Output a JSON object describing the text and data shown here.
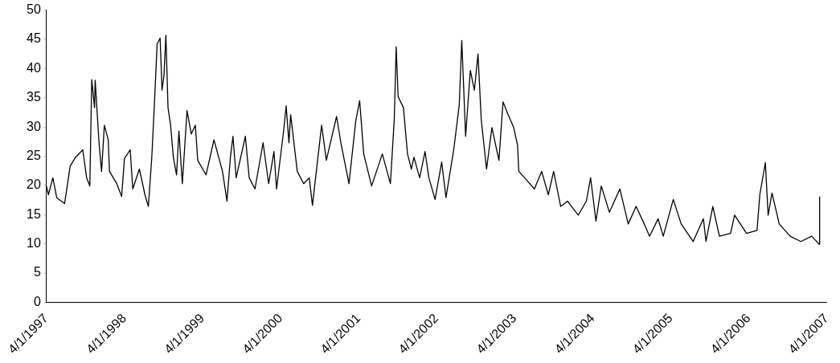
{
  "chart_data": {
    "type": "line",
    "x": [
      "1997-04-01",
      "1997-04-10",
      "1997-05-01",
      "1997-05-19",
      "1997-06-25",
      "1997-07-21",
      "1997-08-15",
      "1997-09-18",
      "1997-10-06",
      "1997-10-21",
      "1997-10-30",
      "1997-11-12",
      "1997-11-15",
      "1997-12-03",
      "1997-12-15",
      "1997-12-28",
      "1998-01-15",
      "1998-01-21",
      "1998-02-24",
      "1998-03-19",
      "1998-04-01",
      "1998-04-28",
      "1998-05-10",
      "1998-06-10",
      "1998-07-06",
      "1998-07-22",
      "1998-08-07",
      "1998-08-19",
      "1998-09-01",
      "1998-09-15",
      "1998-09-24",
      "1998-10-03",
      "1998-10-12",
      "1998-10-22",
      "1998-11-03",
      "1998-11-16",
      "1998-12-01",
      "1998-12-12",
      "1998-12-28",
      "1999-01-19",
      "1999-02-08",
      "1999-02-27",
      "1999-03-10",
      "1999-04-18",
      "1999-05-25",
      "1999-07-04",
      "1999-07-25",
      "1999-08-10",
      "1999-08-22",
      "1999-09-06",
      "1999-10-19",
      "1999-11-06",
      "1999-12-03",
      "2000-01-10",
      "2000-02-05",
      "2000-03-01",
      "2000-03-13",
      "2000-04-15",
      "2000-04-27",
      "2000-05-10",
      "2000-05-18",
      "2000-06-18",
      "2000-07-18",
      "2000-08-13",
      "2000-08-28",
      "2000-10-10",
      "2000-11-01",
      "2000-12-19",
      "2001-01-08",
      "2001-02-15",
      "2001-03-19",
      "2001-04-06",
      "2001-04-25",
      "2001-06-01",
      "2001-07-21",
      "2001-08-28",
      "2001-09-15",
      "2001-09-24",
      "2001-10-03",
      "2001-10-28",
      "2001-11-16",
      "2001-12-04",
      "2001-12-16",
      "2002-01-12",
      "2002-02-06",
      "2002-02-24",
      "2002-03-25",
      "2002-04-25",
      "2002-05-15",
      "2002-06-21",
      "2002-07-16",
      "2002-07-28",
      "2002-08-15",
      "2002-09-06",
      "2002-09-25",
      "2002-10-12",
      "2002-10-27",
      "2002-11-21",
      "2002-12-16",
      "2003-01-18",
      "2003-02-06",
      "2003-03-02",
      "2003-03-28",
      "2003-04-15",
      "2003-04-21",
      "2003-05-28",
      "2003-07-03",
      "2003-08-06",
      "2003-09-06",
      "2003-10-01",
      "2003-11-03",
      "2003-12-05",
      "2004-01-24",
      "2004-03-02",
      "2004-03-22",
      "2004-04-16",
      "2004-05-11",
      "2004-06-18",
      "2004-08-06",
      "2004-09-14",
      "2004-10-21",
      "2004-11-28",
      "2004-12-23",
      "2005-02-01",
      "2005-02-25",
      "2005-04-13",
      "2005-05-20",
      "2005-07-15",
      "2005-09-01",
      "2005-09-13",
      "2005-10-15",
      "2005-11-15",
      "2006-01-06",
      "2006-01-25",
      "2006-03-22",
      "2006-05-10",
      "2006-05-23",
      "2006-06-18",
      "2006-07-01",
      "2006-07-19",
      "2006-08-22",
      "2006-10-12",
      "2006-12-01",
      "2007-01-21",
      "2007-02-26",
      "2007-02-27"
    ],
    "series": [
      {
        "color": "#000000",
        "values": [
          19.9,
          18.4,
          21.3,
          17.9,
          16.9,
          23.3,
          24.8,
          26.1,
          21.3,
          19.9,
          38.1,
          33.3,
          38.0,
          27.3,
          22.4,
          30.3,
          27.8,
          22.4,
          20.3,
          18.1,
          24.6,
          26.1,
          19.4,
          22.8,
          18.4,
          16.4,
          24.8,
          33.7,
          44.2,
          45.2,
          36.3,
          38.8,
          45.7,
          33.3,
          30.3,
          24.8,
          21.8,
          29.3,
          20.3,
          32.8,
          28.8,
          30.3,
          24.3,
          21.8,
          27.8,
          22.4,
          17.3,
          24.8,
          28.4,
          21.3,
          28.4,
          21.3,
          19.4,
          27.3,
          20.3,
          25.8,
          19.4,
          29.3,
          33.6,
          27.3,
          32.1,
          22.4,
          20.3,
          21.3,
          16.6,
          30.3,
          24.3,
          31.8,
          27.3,
          20.3,
          31.1,
          34.5,
          25.4,
          19.9,
          25.4,
          20.3,
          31.3,
          43.7,
          35.2,
          33.3,
          25.4,
          22.8,
          24.8,
          21.3,
          25.8,
          21.3,
          17.6,
          24.0,
          17.9,
          26.3,
          33.7,
          44.8,
          28.4,
          39.7,
          36.3,
          42.5,
          31.3,
          22.8,
          29.9,
          24.3,
          34.3,
          32.1,
          29.9,
          26.9,
          22.4,
          20.9,
          19.4,
          22.4,
          18.4,
          22.4,
          16.4,
          17.3,
          14.9,
          17.3,
          21.3,
          13.9,
          19.9,
          15.4,
          19.4,
          13.4,
          16.4,
          13.4,
          11.3,
          14.3,
          11.3,
          17.6,
          13.4,
          10.4,
          14.3,
          10.4,
          16.4,
          11.3,
          11.8,
          14.9,
          11.8,
          12.3,
          18.4,
          23.9,
          14.9,
          18.7,
          13.4,
          11.3,
          10.4,
          11.3,
          9.9,
          18.1
        ]
      }
    ],
    "xlim": [
      "1997-04-01",
      "2007-04-01"
    ],
    "xticks": [
      {
        "value": "1997-04-01",
        "label": "4/1/1997"
      },
      {
        "value": "1998-04-01",
        "label": "4/1/1998"
      },
      {
        "value": "1999-04-01",
        "label": "4/1/1999"
      },
      {
        "value": "2000-04-01",
        "label": "4/1/2000"
      },
      {
        "value": "2001-04-01",
        "label": "4/1/2001"
      },
      {
        "value": "2002-04-01",
        "label": "4/1/2002"
      },
      {
        "value": "2003-04-01",
        "label": "4/1/2003"
      },
      {
        "value": "2004-04-01",
        "label": "4/1/2004"
      },
      {
        "value": "2005-04-01",
        "label": "4/1/2005"
      },
      {
        "value": "2006-04-01",
        "label": "4/1/2006"
      },
      {
        "value": "2007-04-01",
        "label": "4/1/2007"
      }
    ],
    "ylim": [
      0,
      50
    ],
    "yticks": [
      0,
      5,
      10,
      15,
      20,
      25,
      30,
      35,
      40,
      45,
      50
    ],
    "marker": "none",
    "line_style": "solid"
  }
}
